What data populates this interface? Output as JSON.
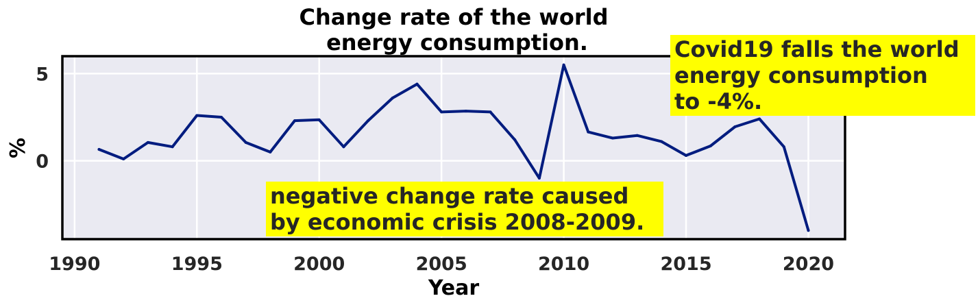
{
  "chart_data": {
    "type": "line",
    "title_lines": [
      "Change rate of the world",
      "energy consumption."
    ],
    "xlabel": "Year",
    "ylabel": "%",
    "xlim": [
      1989.5,
      2021.5
    ],
    "ylim": [
      -4.5,
      6.0
    ],
    "xticks": [
      1990,
      1995,
      2000,
      2005,
      2010,
      2015,
      2020
    ],
    "yticks": [
      0,
      5
    ],
    "grid": true,
    "colors": {
      "line": "#001c7f",
      "plot_bg": "#eaeaf2",
      "grid": "#ffffff",
      "annotation_bg": "#ffff00"
    },
    "series": [
      {
        "x": [
          1991,
          1992,
          1993,
          1994,
          1995,
          1996,
          1997,
          1998,
          1999,
          2000,
          2001,
          2002,
          2003,
          2004,
          2005,
          2006,
          2007,
          2008,
          2009,
          2010,
          2011,
          2012,
          2013,
          2014,
          2015,
          2016,
          2017,
          2018,
          2019,
          2020
        ],
        "y": [
          0.65,
          0.1,
          1.05,
          0.8,
          2.6,
          2.5,
          1.05,
          0.5,
          2.3,
          2.35,
          0.8,
          2.3,
          3.6,
          4.4,
          2.8,
          2.85,
          2.8,
          1.2,
          -1.0,
          5.5,
          1.65,
          1.3,
          1.45,
          1.1,
          0.3,
          0.85,
          1.95,
          2.4,
          0.8,
          -4.0
        ]
      }
    ],
    "annotations": [
      {
        "id": "covid",
        "text": "Covid19 falls the world\nenergy consumption\nto -4%."
      },
      {
        "id": "crisis",
        "text": "negative change rate caused\nby economic crisis 2008-2009."
      }
    ]
  }
}
